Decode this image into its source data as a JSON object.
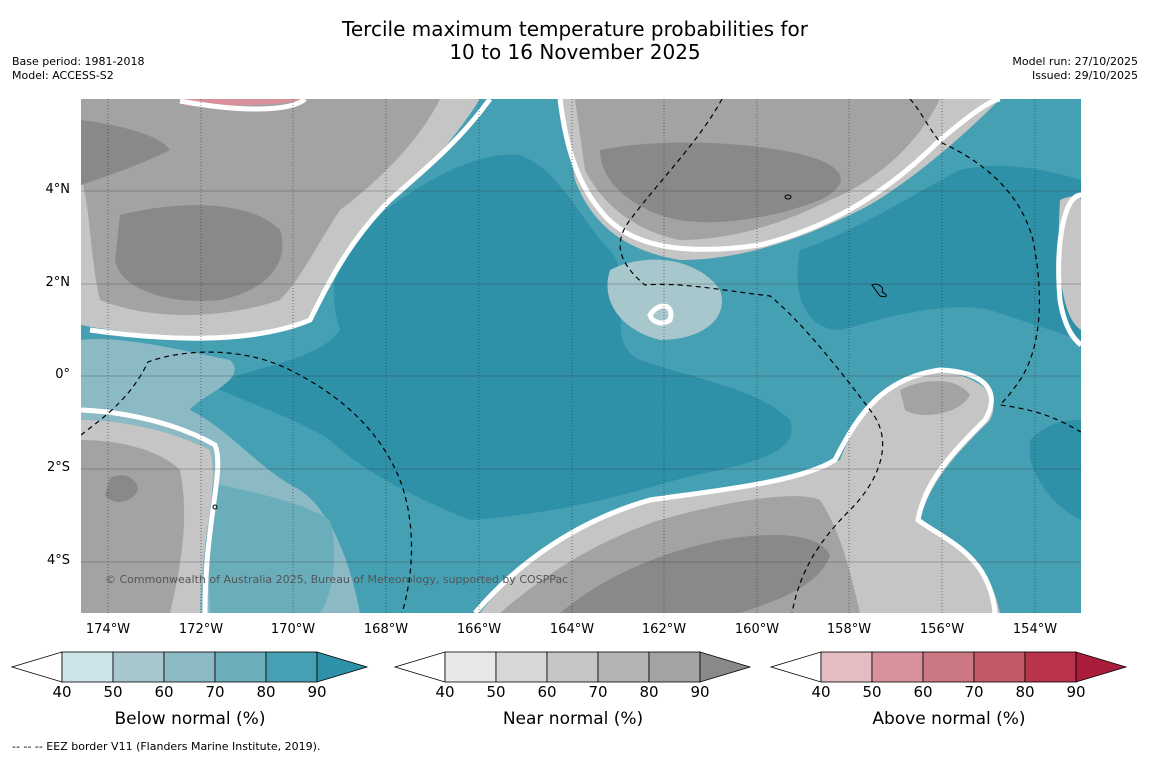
{
  "title_line1": "Tercile maximum temperature probabilities for",
  "title_line2": "10 to 16 November 2025",
  "meta_left": {
    "base_period": "Base period: 1981-2018",
    "model": "Model: ACCESS-S2"
  },
  "meta_right": {
    "model_run": "Model run: 27/10/2025",
    "issued": "Issued: 29/10/2025"
  },
  "lat_labels": [
    "4°N",
    "2°N",
    "0°",
    "2°S",
    "4°S"
  ],
  "lon_labels": [
    "174°W",
    "172°W",
    "170°W",
    "168°W",
    "166°W",
    "164°W",
    "162°W",
    "160°W",
    "158°W",
    "156°W",
    "154°W"
  ],
  "copyright": "© Commonwealth of Australia 2025, Bureau of Meteorology, supported by COSPPac",
  "colorbars": [
    {
      "label": "Below normal (%)",
      "ticks": [
        "40",
        "50",
        "60",
        "70",
        "80",
        "90"
      ],
      "colors": [
        "#cde4ea",
        "#a7c7cc",
        "#8bb9c4",
        "#6aaebb",
        "#45a0b3",
        "#2e91a8"
      ]
    },
    {
      "label": "Near normal (%)",
      "ticks": [
        "40",
        "50",
        "60",
        "70",
        "80",
        "90"
      ],
      "colors": [
        "#e8e8e8",
        "#d7d7d7",
        "#c5c5c5",
        "#b3b3b3",
        "#a3a3a3",
        "#898989"
      ]
    },
    {
      "label": "Above normal (%)",
      "ticks": [
        "40",
        "50",
        "60",
        "70",
        "80",
        "90"
      ],
      "colors": [
        "#e3bdc2",
        "#d9919b",
        "#cc7882",
        "#c25b68",
        "#b9334b",
        "#aa1d3a"
      ]
    }
  ],
  "footer": "--  --  -- EEZ border V11 (Flanders Marine Institute, 2019)."
}
